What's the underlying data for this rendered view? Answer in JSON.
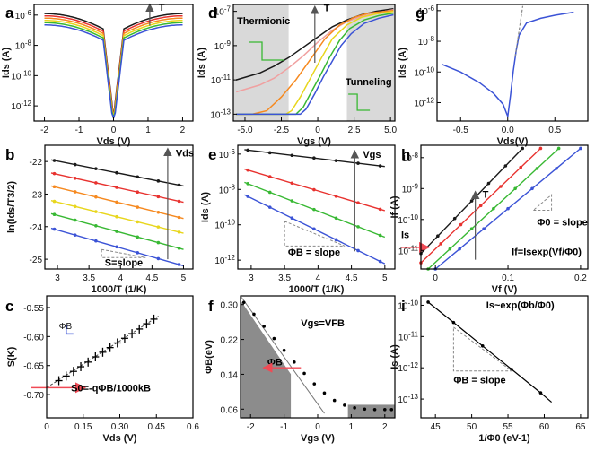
{
  "colors": {
    "black": "#1a1a1a",
    "red": "#e8322f",
    "orange": "#f6891f",
    "yellow": "#e8d61c",
    "green": "#38b833",
    "blue": "#3b53d6",
    "pink": "#f0a0a0",
    "shade": "#d9d9d9",
    "dark_shade": "#8c8c8c",
    "arrow": "#f04a55",
    "gray_arrow": "#888888"
  },
  "chart_data": [
    {
      "panel": "a",
      "type": "line",
      "xlabel": "Vds (V)",
      "ylabel": "Ids (A)",
      "xlim": [
        -2.3,
        2.3
      ],
      "log_ylim": [
        -13,
        -5.3
      ],
      "xticks": [
        "-2",
        "-1",
        "0",
        "1",
        "2"
      ],
      "yticks": [
        "10-12",
        "10-10",
        "10-8",
        "10-6"
      ],
      "annotation": "T",
      "series": [
        {
          "name": "black",
          "edge_log": -5.9
        },
        {
          "name": "red",
          "edge_log": -6.05
        },
        {
          "name": "orange",
          "edge_log": -6.2
        },
        {
          "name": "yellow",
          "edge_log": -6.35
        },
        {
          "name": "green",
          "edge_log": -6.5
        },
        {
          "name": "blue",
          "edge_log": -6.65
        }
      ]
    },
    {
      "panel": "b",
      "type": "line",
      "xlabel": "1000/T (1/K)",
      "ylabel": "ln(Ids/T3/2)",
      "xlim": [
        2.8,
        5.15
      ],
      "ylim": [
        -25.3,
        -21.5
      ],
      "xticks": [
        "3",
        "3.5",
        "4",
        "4.5",
        "5"
      ],
      "yticks": [
        "-25",
        "-24",
        "-23",
        "-22"
      ],
      "annotations": [
        "Vds",
        "S=slope"
      ],
      "series": [
        {
          "name": "black",
          "x": [
            2.9,
            5.0
          ],
          "y": [
            -21.95,
            -22.75
          ]
        },
        {
          "name": "red",
          "x": [
            2.9,
            5.0
          ],
          "y": [
            -22.35,
            -23.25
          ]
        },
        {
          "name": "orange",
          "x": [
            2.9,
            5.0
          ],
          "y": [
            -22.75,
            -23.75
          ]
        },
        {
          "name": "yellow",
          "x": [
            2.9,
            5.0
          ],
          "y": [
            -23.2,
            -24.2
          ]
        },
        {
          "name": "green",
          "x": [
            2.9,
            5.0
          ],
          "y": [
            -23.6,
            -24.7
          ]
        },
        {
          "name": "blue",
          "x": [
            2.9,
            5.0
          ],
          "y": [
            -24.05,
            -25.2
          ]
        }
      ]
    },
    {
      "panel": "c",
      "type": "scatter",
      "xlabel": "Vds (V)",
      "ylabel": "S(K)",
      "xlim": [
        0,
        0.6
      ],
      "ylim": [
        -0.74,
        -0.53
      ],
      "xticks": [
        "0",
        "0.15",
        "0.30",
        "0.45",
        "0.6"
      ],
      "yticks": [
        "-0.70",
        "-0.65",
        "-0.60",
        "-0.55"
      ],
      "annotations": [
        "ΦB",
        "S0=-qΦB/1000kB"
      ],
      "x": [
        0.05,
        0.08,
        0.11,
        0.14,
        0.17,
        0.2,
        0.23,
        0.26,
        0.29,
        0.32,
        0.35,
        0.38,
        0.41,
        0.44
      ],
      "y": [
        -0.676,
        -0.668,
        -0.66,
        -0.652,
        -0.644,
        -0.635,
        -0.627,
        -0.619,
        -0.611,
        -0.603,
        -0.595,
        -0.587,
        -0.578,
        -0.57
      ],
      "fit_intercept": -0.688
    },
    {
      "panel": "d",
      "type": "line",
      "xlabel": "Vgs (V)",
      "ylabel": "Ids (A)",
      "xlim": [
        -5.8,
        5.3
      ],
      "log_ylim": [
        -13.4,
        -6.6
      ],
      "xticks": [
        "-5.0",
        "-2.5",
        "0",
        "2.5",
        "5.0"
      ],
      "yticks": [
        "10-13",
        "10-11",
        "10-9",
        "10-7"
      ],
      "annotations": [
        "Thermionic",
        "Tunneling",
        "T"
      ],
      "series": [
        {
          "name": "black",
          "x": [
            -5.6,
            -4,
            -3,
            -2,
            -1,
            0,
            1,
            2,
            3,
            4,
            5.2
          ],
          "logy": [
            -11.0,
            -10.6,
            -10.2,
            -9.7,
            -9.1,
            -8.5,
            -7.9,
            -7.5,
            -7.2,
            -7.0,
            -6.85
          ]
        },
        {
          "name": "pink",
          "x": [
            -5.6,
            -4,
            -3,
            -2,
            -1,
            0,
            1,
            2,
            3,
            4,
            5.2
          ],
          "logy": [
            -11.7,
            -11.3,
            -10.9,
            -10.3,
            -9.6,
            -8.8,
            -8.1,
            -7.6,
            -7.3,
            -7.1,
            -6.9
          ]
        },
        {
          "name": "orange",
          "x": [
            -5.6,
            -4.5,
            -3.5,
            -2.5,
            -1.5,
            -0.5,
            0.5,
            1.5,
            2.5,
            3.5,
            5.2
          ],
          "logy": [
            -13.0,
            -13.0,
            -12.8,
            -12.0,
            -11.0,
            -9.8,
            -8.6,
            -7.8,
            -7.35,
            -7.1,
            -6.95
          ]
        },
        {
          "name": "yellow",
          "x": [
            -5.6,
            -2.2,
            -1.8,
            -1.2,
            -0.5,
            0.2,
            1.0,
            2.0,
            3.0,
            4.0,
            5.2
          ],
          "logy": [
            -13.0,
            -13.0,
            -12.8,
            -12.0,
            -10.9,
            -9.8,
            -8.6,
            -7.8,
            -7.35,
            -7.15,
            -7.0
          ]
        },
        {
          "name": "green",
          "x": [
            -5.6,
            -1.5,
            -1.0,
            -0.5,
            0.2,
            0.8,
            1.5,
            2.2,
            3.2,
            4.2,
            5.2
          ],
          "logy": [
            -13.0,
            -13.0,
            -12.6,
            -11.8,
            -10.7,
            -9.7,
            -8.7,
            -8.0,
            -7.5,
            -7.25,
            -7.1
          ]
        },
        {
          "name": "blue",
          "x": [
            -5.6,
            -1.2,
            -0.8,
            -0.2,
            0.4,
            1.0,
            1.6,
            2.3,
            3.2,
            4.2,
            5.2
          ],
          "logy": [
            -13.0,
            -13.0,
            -12.7,
            -11.8,
            -10.8,
            -9.9,
            -9.0,
            -8.3,
            -7.7,
            -7.4,
            -7.2
          ]
        }
      ],
      "shaded_x": [
        [
          -5.8,
          -2.0
        ],
        [
          2.0,
          5.3
        ]
      ]
    },
    {
      "panel": "e",
      "type": "line",
      "xlabel": "1000/T (1/K)",
      "ylabel": "Ids (A)",
      "xlim": [
        2.8,
        5.15
      ],
      "log_ylim": [
        -12.5,
        -5.5
      ],
      "xticks": [
        "3",
        "3.5",
        "4",
        "4.5",
        "5"
      ],
      "yticks": [
        "10-12",
        "10-10",
        "10-8",
        "10-6"
      ],
      "annotations": [
        "Vgs",
        "ΦB = slope"
      ],
      "series": [
        {
          "name": "black",
          "x": [
            2.9,
            5.0
          ],
          "logy": [
            -5.75,
            -6.7
          ]
        },
        {
          "name": "red",
          "x": [
            2.9,
            5.0
          ],
          "logy": [
            -6.85,
            -9.2
          ]
        },
        {
          "name": "green",
          "x": [
            2.9,
            5.0
          ],
          "logy": [
            -7.6,
            -10.7
          ]
        },
        {
          "name": "blue",
          "x": [
            2.9,
            5.0
          ],
          "logy": [
            -8.3,
            -12.2
          ]
        }
      ]
    },
    {
      "panel": "f",
      "type": "scatter",
      "xlabel": "Vgs (V)",
      "ylabel": "ΦB(eV)",
      "xlim": [
        -2.3,
        2.3
      ],
      "ylim": [
        0.04,
        0.32
      ],
      "xticks": [
        "-2",
        "-1",
        "0",
        "1",
        "2"
      ],
      "yticks": [
        "0.06",
        "0.14",
        "0.22",
        "0.30"
      ],
      "annotations": [
        "ΦB",
        "Vgs=VFB"
      ],
      "x": [
        -2.2,
        -1.9,
        -1.6,
        -1.3,
        -1.0,
        -0.7,
        -0.4,
        -0.1,
        0.2,
        0.5,
        0.8,
        1.1,
        1.4,
        1.7,
        2.0,
        2.2
      ],
      "y": [
        0.305,
        0.278,
        0.25,
        0.222,
        0.195,
        0.168,
        0.142,
        0.118,
        0.097,
        0.08,
        0.069,
        0.063,
        0.06,
        0.059,
        0.059,
        0.059
      ],
      "linear_fit": {
        "x": [
          -2.3,
          0.2
        ],
        "y": [
          0.32,
          0.05
        ]
      }
    },
    {
      "panel": "g",
      "type": "line",
      "xlabel": "Vds(V)",
      "ylabel": "Ids (A)",
      "xlim": [
        -0.75,
        0.85
      ],
      "log_ylim": [
        -13.2,
        -5.6
      ],
      "xticks": [
        "-0.5",
        "0.0",
        "0.5"
      ],
      "yticks": [
        "10-12",
        "10-10",
        "10-8",
        "10-6"
      ],
      "x": [
        -0.7,
        -0.5,
        -0.3,
        -0.15,
        -0.05,
        0.0,
        0.03,
        0.06,
        0.09,
        0.12,
        0.2,
        0.35,
        0.5,
        0.7
      ],
      "logy": [
        -9.5,
        -10.0,
        -10.7,
        -11.4,
        -12.1,
        -12.9,
        -11.5,
        -9.9,
        -8.6,
        -7.6,
        -6.8,
        -6.5,
        -6.3,
        -6.1
      ],
      "asymptote": {
        "x": [
          0.08,
          0.16
        ],
        "logy": [
          -9.0,
          -5.7
        ]
      }
    },
    {
      "panel": "h",
      "type": "line",
      "xlabel": "Vf (V)",
      "ylabel": "If (A)",
      "xlim": [
        -0.02,
        0.21
      ],
      "log_ylim": [
        -11.6,
        -7.6
      ],
      "xticks": [
        "0",
        "0.1",
        "0.2"
      ],
      "yticks": [
        "10-11",
        "10-10",
        "10-9",
        "10-8"
      ],
      "annotations": [
        "Is",
        "T",
        "Φ0 = slope",
        "If=Isexp(Vf/Φ0)"
      ],
      "series": [
        {
          "name": "black",
          "x": [
            -0.02,
            0.12
          ],
          "logy": [
            -11.1,
            -7.7
          ]
        },
        {
          "name": "red",
          "x": [
            -0.02,
            0.145
          ],
          "logy": [
            -11.4,
            -7.7
          ]
        },
        {
          "name": "green",
          "x": [
            -0.01,
            0.17
          ],
          "logy": [
            -11.6,
            -7.7
          ]
        },
        {
          "name": "blue",
          "x": [
            0.0,
            0.2
          ],
          "logy": [
            -11.6,
            -7.7
          ]
        }
      ]
    },
    {
      "panel": "i",
      "type": "line",
      "xlabel": "1/Φ0 (eV-1)",
      "ylabel": "Is (A)",
      "xlim": [
        43,
        66
      ],
      "log_ylim": [
        -13.6,
        -9.7
      ],
      "xticks": [
        "45",
        "50",
        "55",
        "60",
        "65"
      ],
      "yticks": [
        "10-13",
        "10-12",
        "10-11",
        "10-10"
      ],
      "annotations": [
        "Is~exp(Φb/Φ0)",
        "ΦB = slope"
      ],
      "x": [
        44,
        47.5,
        51.5,
        55.5,
        59.5,
        61
      ],
      "logy": [
        -9.9,
        -10.55,
        -11.3,
        -12.05,
        -12.8,
        -13.1
      ]
    }
  ]
}
